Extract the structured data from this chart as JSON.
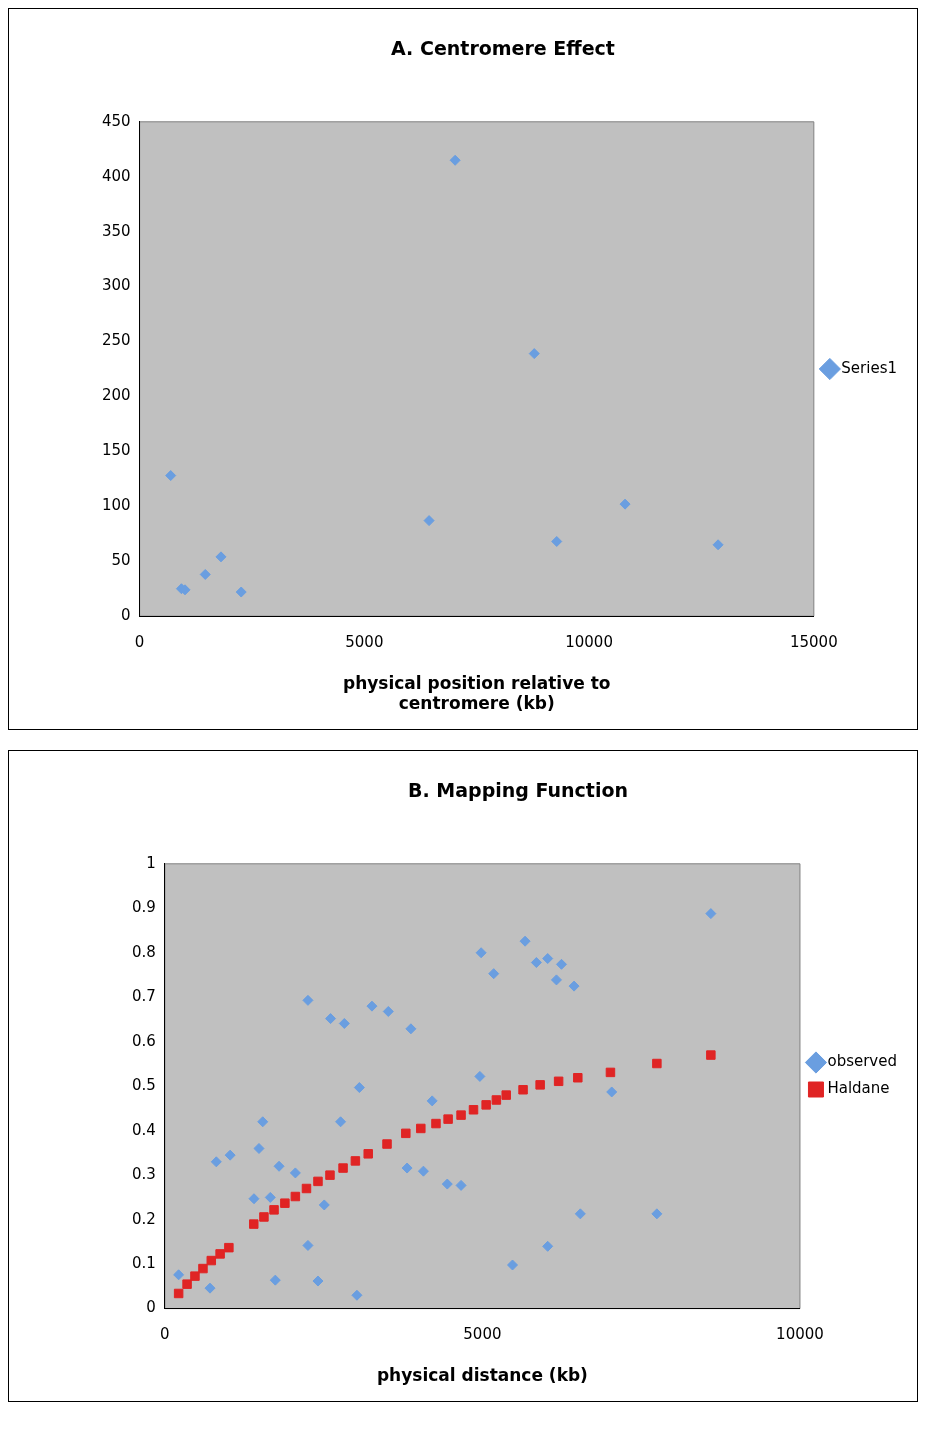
{
  "chart_data": [
    {
      "type": "scatter",
      "title": "A. Centromere Effect",
      "xlabel": "physical position relative to centromere (kb)",
      "xlim": [
        0,
        15000
      ],
      "xticks": [
        0,
        5000,
        10000,
        15000
      ],
      "ylim": [
        0,
        450
      ],
      "yticks": [
        0,
        50,
        100,
        150,
        200,
        250,
        300,
        350,
        400,
        450
      ],
      "legend": "right",
      "marker": "diamond",
      "series": [
        {
          "name": "Series1",
          "color": "#6a9ee0",
          "x": [
            691,
            930,
            1010,
            1460,
            1810,
            2260,
            6440,
            7020,
            8780,
            9280,
            10800,
            12870
          ],
          "values": [
            128,
            25,
            24,
            38,
            54,
            22,
            87,
            415,
            239,
            68,
            102,
            65
          ]
        }
      ]
    },
    {
      "type": "scatter",
      "title": "B. Mapping Function",
      "xlabel": "physical distance (kb)",
      "xlim": [
        0,
        10000
      ],
      "xticks": [
        0,
        5000,
        10000
      ],
      "ylim": [
        0,
        1
      ],
      "yticks": [
        0,
        0.1,
        0.2,
        0.3,
        0.4,
        0.5,
        0.6,
        0.7,
        0.8,
        0.9,
        1
      ],
      "legend": "right",
      "series": [
        {
          "name": "observed",
          "color": "#6a9ee0",
          "marker": "diamond",
          "x": [
            217,
            711,
            810,
            1028,
            1482,
            1541,
            1403,
            1660,
            1798,
            2055,
            1739,
            2253,
            2253,
            2510,
            2411,
            2609,
            2826,
            2767,
            3063,
            3024,
            3261,
            3518,
            3874,
            3814,
            4071,
            4209,
            4447,
            4664,
            4960,
            4980,
            5178,
            5672,
            5850,
            6028,
            6245,
            6166,
            6443,
            7036,
            8597,
            6542,
            7747,
            6028,
            5474
          ],
          "values": [
            0.076,
            0.046,
            0.33,
            0.345,
            0.36,
            0.42,
            0.247,
            0.25,
            0.32,
            0.305,
            0.064,
            0.693,
            0.142,
            0.233,
            0.062,
            0.652,
            0.641,
            0.42,
            0.497,
            0.03,
            0.68,
            0.668,
            0.629,
            0.316,
            0.309,
            0.467,
            0.28,
            0.277,
            0.522,
            0.8,
            0.753,
            0.826,
            0.778,
            0.787,
            0.774,
            0.739,
            0.725,
            0.487,
            0.888,
            0.213,
            0.213,
            0.14,
            0.098
          ]
        },
        {
          "name": "Haldane",
          "color": "#e02424",
          "marker": "square",
          "x": [
            217,
            350,
            474,
            600,
            731,
            870,
            1008,
            1400,
            1560,
            1719,
            1890,
            2055,
            2230,
            2411,
            2600,
            2806,
            3000,
            3202,
            3498,
            3794,
            4030,
            4269,
            4460,
            4664,
            4860,
            5059,
            5220,
            5375,
            5640,
            5909,
            6200,
            6502,
            7016,
            7747,
            8597
          ],
          "values": [
            0.034,
            0.055,
            0.073,
            0.09,
            0.108,
            0.123,
            0.137,
            0.19,
            0.206,
            0.222,
            0.237,
            0.252,
            0.27,
            0.286,
            0.3,
            0.316,
            0.332,
            0.348,
            0.37,
            0.394,
            0.405,
            0.416,
            0.426,
            0.435,
            0.447,
            0.458,
            0.469,
            0.48,
            0.492,
            0.503,
            0.511,
            0.519,
            0.531,
            0.551,
            0.57
          ]
        }
      ]
    }
  ]
}
